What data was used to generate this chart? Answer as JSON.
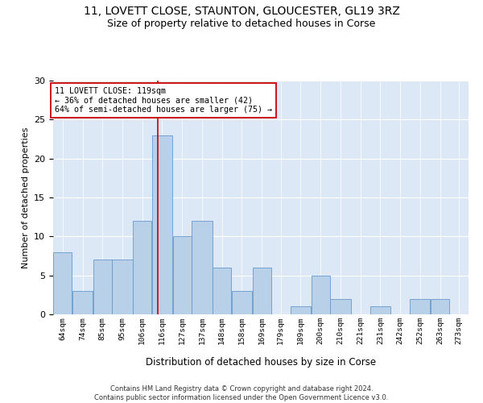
{
  "title": "11, LOVETT CLOSE, STAUNTON, GLOUCESTER, GL19 3RZ",
  "subtitle": "Size of property relative to detached houses in Corse",
  "xlabel": "Distribution of detached houses by size in Corse",
  "ylabel": "Number of detached properties",
  "footer_line1": "Contains HM Land Registry data © Crown copyright and database right 2024.",
  "footer_line2": "Contains public sector information licensed under the Open Government Licence v3.0.",
  "bin_labels": [
    "64sqm",
    "74sqm",
    "85sqm",
    "95sqm",
    "106sqm",
    "116sqm",
    "127sqm",
    "137sqm",
    "148sqm",
    "158sqm",
    "169sqm",
    "179sqm",
    "189sqm",
    "200sqm",
    "210sqm",
    "221sqm",
    "231sqm",
    "242sqm",
    "252sqm",
    "263sqm",
    "273sqm"
  ],
  "bar_values": [
    8,
    3,
    7,
    7,
    12,
    23,
    10,
    12,
    6,
    3,
    6,
    0,
    1,
    5,
    2,
    0,
    1,
    0,
    2,
    2,
    0
  ],
  "bin_edges": [
    64,
    74,
    85,
    95,
    106,
    116,
    127,
    137,
    148,
    158,
    169,
    179,
    189,
    200,
    210,
    221,
    231,
    242,
    252,
    263,
    273,
    283
  ],
  "bar_color": "#b8d0e8",
  "bar_edge_color": "#6699cc",
  "vline_x": 119,
  "vline_color": "#cc0000",
  "annotation_text": "11 LOVETT CLOSE: 119sqm\n← 36% of detached houses are smaller (42)\n64% of semi-detached houses are larger (75) →",
  "annotation_box_color": "#ffffff",
  "annotation_box_edge": "#cc0000",
  "ylim": [
    0,
    30
  ],
  "yticks": [
    0,
    5,
    10,
    15,
    20,
    25,
    30
  ],
  "bg_color": "#dce8f5",
  "title_fontsize": 10,
  "subtitle_fontsize": 9,
  "figwidth": 6.0,
  "figheight": 5.0,
  "dpi": 100
}
